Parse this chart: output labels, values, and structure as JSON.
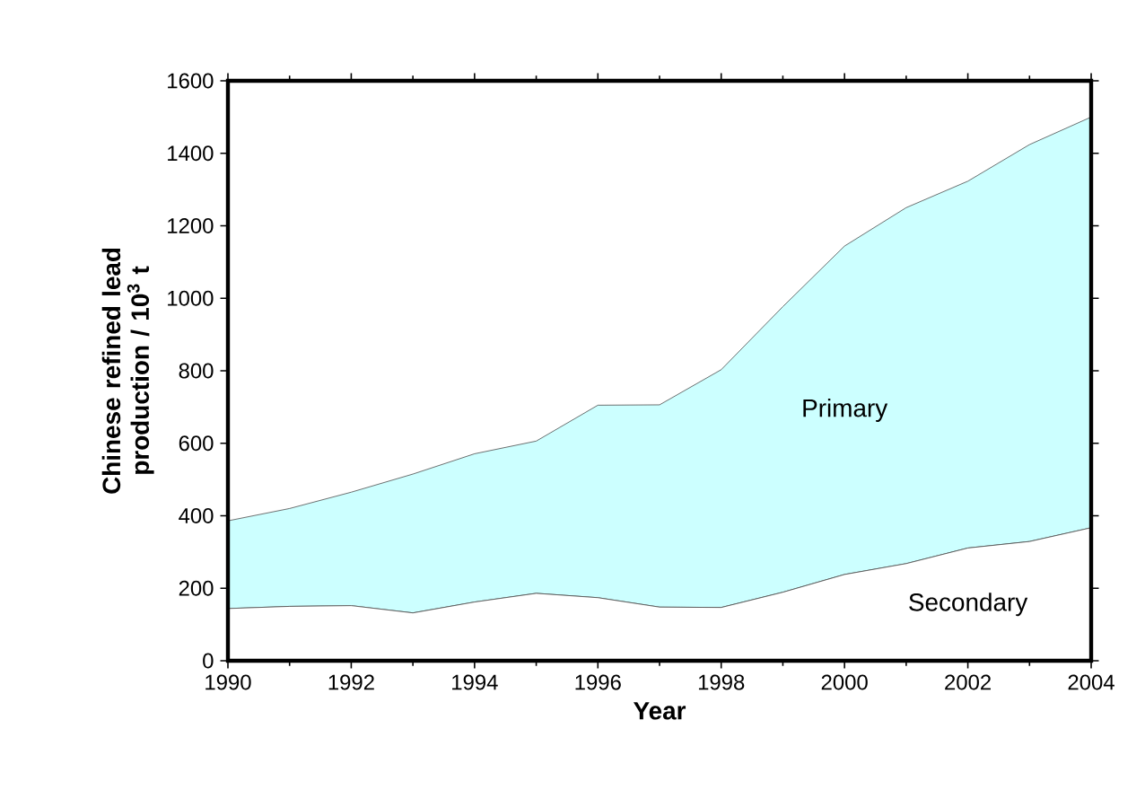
{
  "chart_data": {
    "type": "area",
    "stacked": true,
    "xlabel": "Year",
    "ylabel": "Chinese refined lead production  / 10$^{3}$ t",
    "x": [
      1990,
      1991,
      1992,
      1993,
      1994,
      1995,
      1996,
      1997,
      1998,
      1999,
      2000,
      2001,
      2002,
      2003,
      2004
    ],
    "series": [
      {
        "name": "Secondary",
        "color": "#ffffff",
        "values": [
          144,
          150,
          152,
          132,
          162,
          186,
          174,
          148,
          147,
          189,
          238,
          268,
          311,
          329,
          367
        ]
      },
      {
        "name": "Primary",
        "color": "#ccffff",
        "values": [
          242,
          270,
          313,
          383,
          409,
          420,
          531,
          558,
          656,
          788,
          906,
          982,
          1012,
          1095,
          1133
        ]
      }
    ],
    "xlim": [
      1990,
      2004
    ],
    "xticks": [
      1990,
      1992,
      1994,
      1996,
      1998,
      2000,
      2002,
      2004
    ],
    "ylim": [
      0,
      1600
    ],
    "yticks": [
      0,
      200,
      400,
      600,
      800,
      1000,
      1200,
      1400,
      1600
    ],
    "grid": false
  }
}
